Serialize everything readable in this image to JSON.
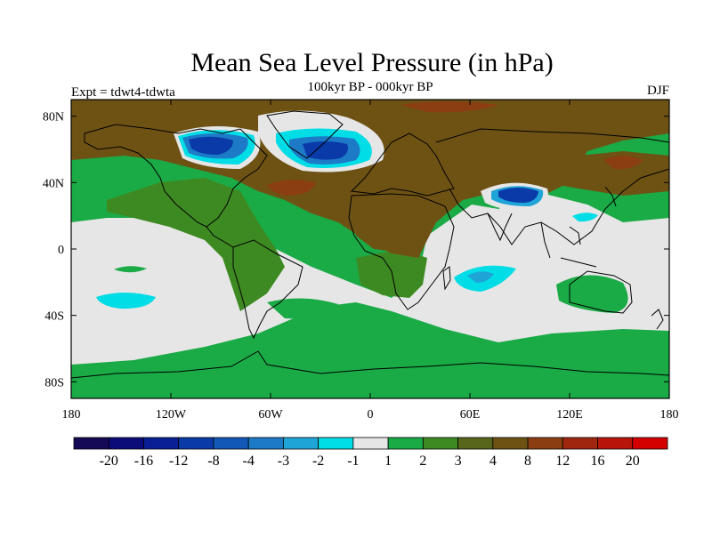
{
  "title": "Mean Sea Level Pressure (in hPa)",
  "left_label": "Expt = tdwt4-tdwta",
  "center_label": "100kyr BP - 000kyr BP",
  "right_label": "DJF",
  "lat_ticks": [
    "80N",
    "40N",
    "0",
    "40S",
    "80S"
  ],
  "lon_ticks": [
    "180",
    "120W",
    "60W",
    "0",
    "60E",
    "120E",
    "180"
  ],
  "colorbar": {
    "colors": [
      "#150a55",
      "#0b0c7a",
      "#0a1e96",
      "#0a3aa8",
      "#1258b6",
      "#1c7ac6",
      "#1fa4d8",
      "#00dde6",
      "#e6e6e6",
      "#1aaa46",
      "#3e8a22",
      "#57661a",
      "#6e5214",
      "#8a3e12",
      "#a0260e",
      "#b8140a",
      "#d40000"
    ],
    "labels": [
      "-20",
      "-16",
      "-12",
      "-8",
      "-4",
      "-3",
      "-2",
      "-1",
      "1",
      "2",
      "3",
      "4",
      "8",
      "12",
      "16",
      "20"
    ]
  },
  "chart_data": {
    "type": "heatmap",
    "title": "Mean Sea Level Pressure (in hPa)",
    "subtitle": "100kyr BP - 000kyr BP",
    "experiment": "Expt = tdwt4-tdwta",
    "season": "DJF",
    "xlim": [
      -180,
      180
    ],
    "ylim": [
      -90,
      90
    ],
    "x_ticks": [
      "180",
      "120W",
      "60W",
      "0",
      "60E",
      "120E",
      "180"
    ],
    "y_ticks": [
      "80N",
      "40N",
      "0",
      "40S",
      "80S"
    ],
    "levels": [
      -20,
      -16,
      -12,
      -8,
      -4,
      -3,
      -2,
      -1,
      1,
      2,
      3,
      4,
      8,
      12,
      16,
      20
    ],
    "regions": [
      {
        "lon_range": [
          -180,
          180
        ],
        "lat_range": [
          -90,
          90
        ],
        "value": 0,
        "category": "-1..1"
      },
      {
        "lon_range": [
          -180,
          180
        ],
        "lat_range": [
          -75,
          -90
        ],
        "value": 2.5,
        "category": "2..3"
      },
      {
        "lon_range": [
          -140,
          20
        ],
        "lat_range": [
          0,
          65
        ],
        "value": 3.5,
        "category": "3..4"
      },
      {
        "lon_range": [
          -20,
          130
        ],
        "lat_range": [
          -10,
          65
        ],
        "value": 5,
        "category": "4..8"
      },
      {
        "lon_range": [
          -60,
          -10
        ],
        "lat_range": [
          35,
          50
        ],
        "value": 9,
        "category": "8..12"
      },
      {
        "lon_range": [
          -110,
          -80
        ],
        "lat_range": [
          60,
          74
        ],
        "value": -12,
        "category": "-16..-12"
      },
      {
        "lon_range": [
          -40,
          0
        ],
        "lat_range": [
          50,
          72
        ],
        "value": -12,
        "category": "-16..-12"
      },
      {
        "lon_range": [
          80,
          105
        ],
        "lat_range": [
          25,
          40
        ],
        "value": -8,
        "category": "-12..-8"
      },
      {
        "lon_range": [
          55,
          90
        ],
        "lat_range": [
          -10,
          -25
        ],
        "value": -2,
        "category": "-3..-2"
      },
      {
        "lon_range": [
          -165,
          -120
        ],
        "lat_range": [
          -25,
          -35
        ],
        "value": -1.5,
        "category": "-2..-1"
      },
      {
        "lon_range": [
          120,
          140
        ],
        "lat_range": [
          17,
          24
        ],
        "value": -1.5,
        "category": "-2..-1"
      },
      {
        "lon_range": [
          110,
          155
        ],
        "lat_range": [
          -20,
          -40
        ],
        "value": 1.5,
        "category": "1..2"
      },
      {
        "lon_range": [
          -145,
          -125
        ],
        "lat_range": [
          -10,
          -14
        ],
        "value": 1.5,
        "category": "1..2"
      }
    ]
  }
}
